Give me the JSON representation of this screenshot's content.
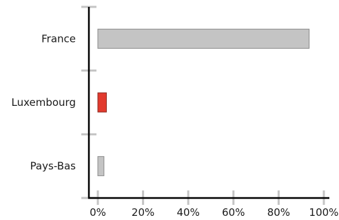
{
  "chart_data": {
    "type": "bar",
    "orientation": "horizontal",
    "title": "",
    "xlabel": "",
    "ylabel": "",
    "categories": [
      "France",
      "Luxembourg",
      "Pays-Bas"
    ],
    "values": [
      93.5,
      3.8,
      2.7
    ],
    "xlim": [
      0,
      100
    ],
    "x_ticks": [
      "0%",
      "20%",
      "40%",
      "60%",
      "80%",
      "100%"
    ],
    "x_tick_values": [
      0,
      20,
      40,
      60,
      80,
      100
    ],
    "grid": false,
    "legend": "none",
    "colors": {
      "default_bar": "#c4c4c4",
      "default_bar_stroke": "#8a8a8a",
      "highlight_bar": "#e23a2e",
      "highlight_bar_stroke": "#8a2a22",
      "highlight_category": "Luxembourg",
      "axis": "#000000",
      "tick": "#c4c4c4"
    }
  }
}
